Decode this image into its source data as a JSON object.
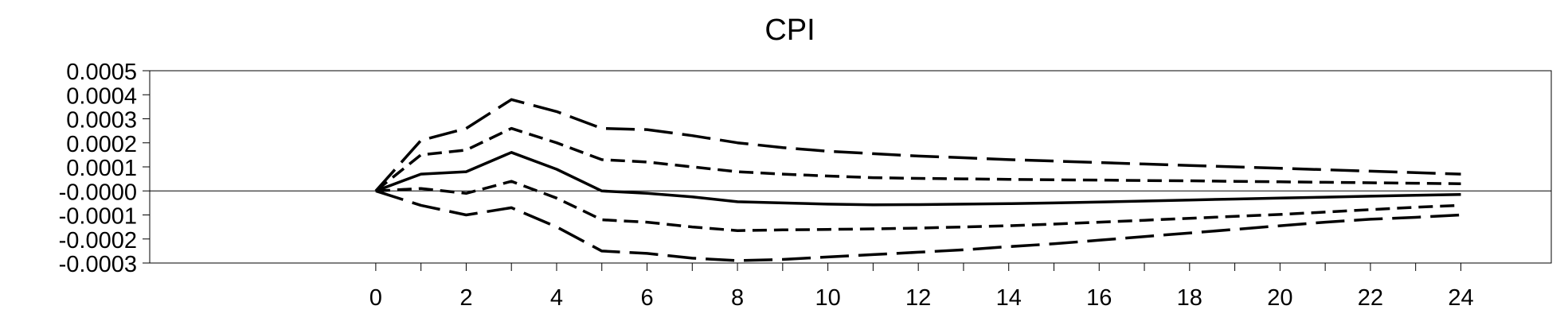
{
  "chart_data": {
    "type": "line",
    "title": "CPI",
    "xlabel": "",
    "ylabel": "",
    "xlim": [
      -5,
      26
    ],
    "ylim": [
      -0.0003,
      0.0005
    ],
    "x_ticks": [
      0,
      2,
      4,
      6,
      8,
      10,
      12,
      14,
      16,
      18,
      20,
      22,
      24
    ],
    "x_tick_labels": [
      "0",
      "2",
      "4",
      "6",
      "8",
      "10",
      "12",
      "14",
      "16",
      "18",
      "20",
      "22",
      "24"
    ],
    "y_ticks": [
      0.0005,
      0.0004,
      0.0003,
      0.0002,
      0.0001,
      0.0,
      -0.0001,
      -0.0002,
      -0.0003
    ],
    "y_tick_labels": [
      "0.0005",
      "0.0004",
      "0.0003",
      "0.0002",
      "0.0001",
      "-0.0000",
      "-0.0001",
      "-0.0002",
      "-0.0003"
    ],
    "grid": false,
    "zero_line": true,
    "x": [
      0,
      1,
      2,
      3,
      4,
      5,
      6,
      7,
      8,
      9,
      10,
      11,
      12,
      13,
      14,
      15,
      16,
      17,
      18,
      19,
      20,
      21,
      22,
      23,
      24
    ],
    "series": [
      {
        "style": "long-dash",
        "color": "#000000",
        "values": [
          0.0,
          0.00021,
          0.00026,
          0.00038,
          0.00033,
          0.00026,
          0.000255,
          0.00023,
          0.0002,
          0.00018,
          0.000165,
          0.000155,
          0.000145,
          0.000138,
          0.00013,
          0.000124,
          0.000118,
          0.000112,
          0.000106,
          0.0001,
          9.4e-05,
          8.8e-05,
          8.2e-05,
          7.6e-05,
          7e-05
        ]
      },
      {
        "style": "short-dash",
        "color": "#000000",
        "values": [
          0.0,
          0.00015,
          0.00017,
          0.00026,
          0.0002,
          0.00013,
          0.00012,
          0.0001,
          8e-05,
          7e-05,
          6.2e-05,
          5.5e-05,
          5.2e-05,
          5e-05,
          4.8e-05,
          4.6e-05,
          4.5e-05,
          4.3e-05,
          4.2e-05,
          4e-05,
          3.8e-05,
          3.6e-05,
          3.4e-05,
          3.2e-05,
          3e-05
        ]
      },
      {
        "style": "solid",
        "color": "#000000",
        "values": [
          0.0,
          7e-05,
          8e-05,
          0.00016,
          9e-05,
          0.0,
          -1e-05,
          -2.5e-05,
          -4.5e-05,
          -5e-05,
          -5.5e-05,
          -5.8e-05,
          -5.7e-05,
          -5.5e-05,
          -5.3e-05,
          -5e-05,
          -4.6e-05,
          -4.2e-05,
          -3.8e-05,
          -3.4e-05,
          -3e-05,
          -2.6e-05,
          -2.2e-05,
          -1.8e-05,
          -1.5e-05
        ]
      },
      {
        "style": "short-dash",
        "color": "#000000",
        "values": [
          0.0,
          1e-05,
          -1e-05,
          4e-05,
          -3e-05,
          -0.00012,
          -0.00013,
          -0.00015,
          -0.000165,
          -0.000162,
          -0.00016,
          -0.000158,
          -0.000155,
          -0.00015,
          -0.000145,
          -0.000138,
          -0.00013,
          -0.000122,
          -0.000114,
          -0.000106,
          -9.8e-05,
          -8.8e-05,
          -7.8e-05,
          -6.8e-05,
          -6e-05
        ]
      },
      {
        "style": "long-dash",
        "color": "#000000",
        "values": [
          0.0,
          -6e-05,
          -0.0001,
          -7e-05,
          -0.00015,
          -0.00025,
          -0.00026,
          -0.00028,
          -0.00029,
          -0.000285,
          -0.000275,
          -0.000265,
          -0.000255,
          -0.000245,
          -0.000232,
          -0.00022,
          -0.000205,
          -0.00019,
          -0.000175,
          -0.00016,
          -0.000145,
          -0.00013,
          -0.000118,
          -0.00011,
          -0.0001
        ]
      }
    ]
  }
}
